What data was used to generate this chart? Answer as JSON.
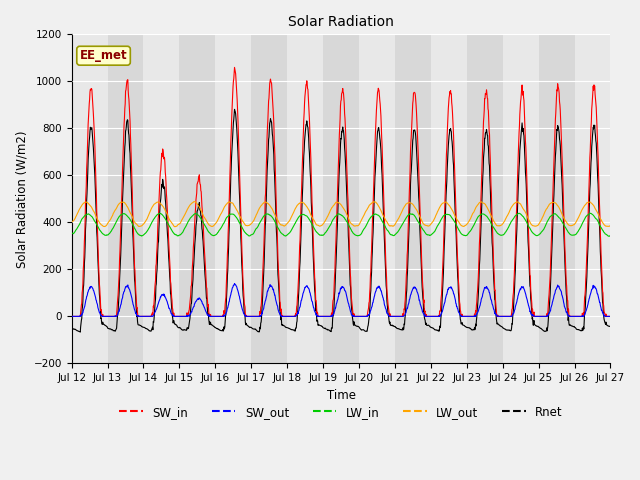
{
  "title": "Solar Radiation",
  "ylabel": "Solar Radiation (W/m2)",
  "xlabel": "Time",
  "ylim": [
    -200,
    1200
  ],
  "yticks": [
    -200,
    0,
    200,
    400,
    600,
    800,
    1000,
    1200
  ],
  "site_label": "EE_met",
  "legend": [
    "SW_in",
    "SW_out",
    "LW_in",
    "LW_out",
    "Rnet"
  ],
  "colors": {
    "SW_in": "#ff0000",
    "SW_out": "#0000ff",
    "LW_in": "#00cc00",
    "LW_out": "#ffa500",
    "Rnet": "#000000"
  },
  "bg_color": "#f0f0f0",
  "plot_bg_light": "#e8e8e8",
  "plot_bg_dark": "#d8d8d8",
  "n_days": 15,
  "start_day": 12,
  "points_per_day": 96,
  "LW_in_base": 390,
  "LW_in_amp": 50,
  "LW_out_base": 435,
  "LW_out_amp": 55,
  "Rnet_night": -55
}
